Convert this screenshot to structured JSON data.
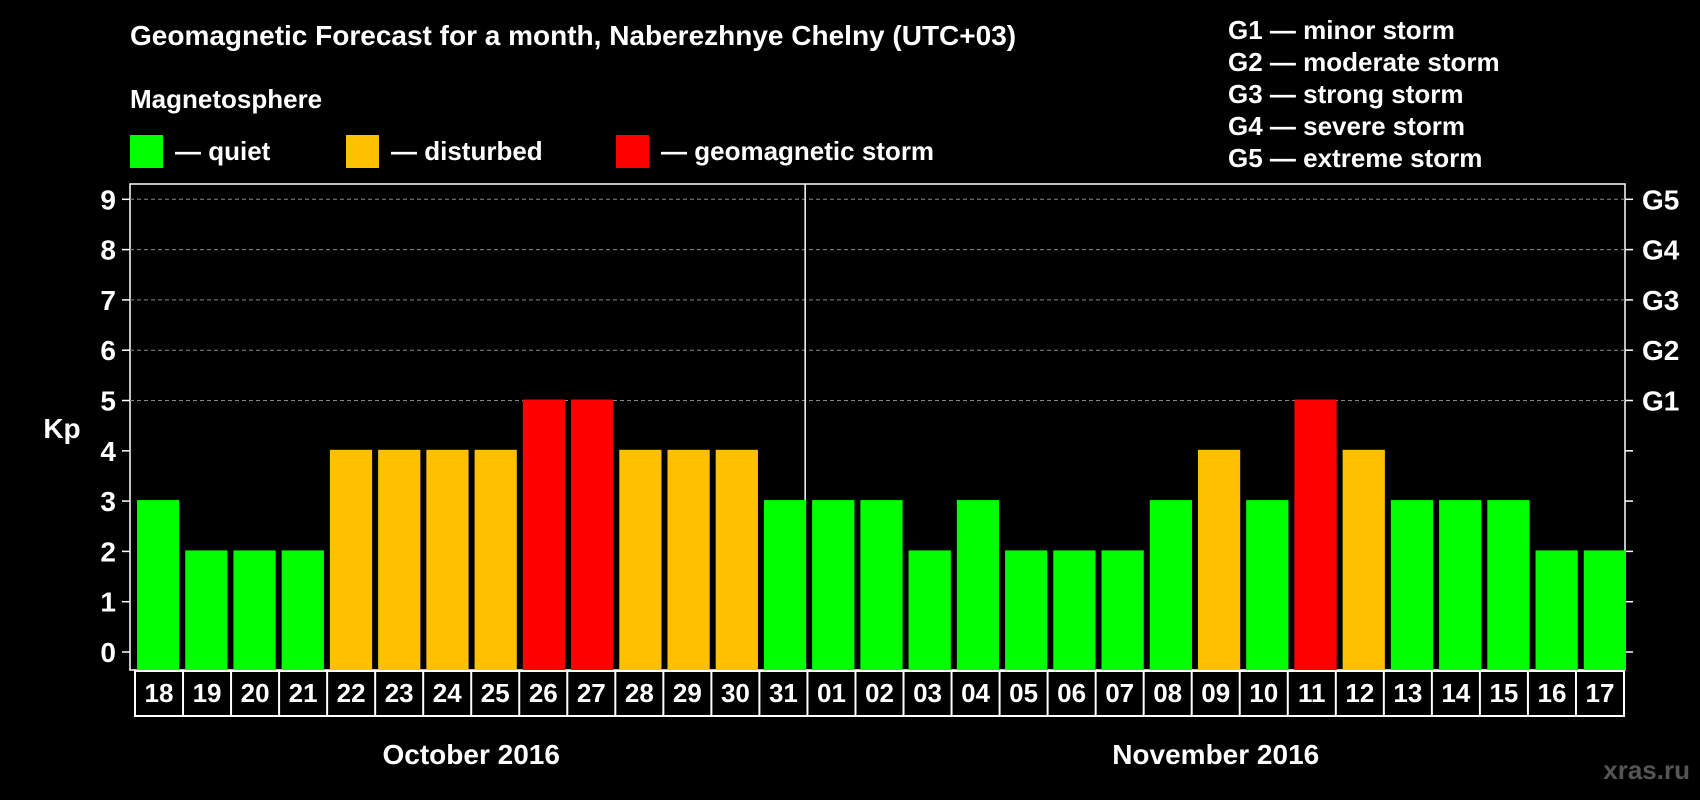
{
  "title": "Geomagnetic Forecast for a month, Naberezhnye Chelny (UTC+03)",
  "subtitle": "Magnetosphere",
  "legend": [
    {
      "label": "— quiet",
      "color": "#00ff00"
    },
    {
      "label": "— disturbed",
      "color": "#ffc000"
    },
    {
      "label": "— geomagnetic storm",
      "color": "#ff0000"
    }
  ],
  "g_legend": [
    "G1 — minor storm",
    "G2 — moderate storm",
    "G3 — strong storm",
    "G4 — severe storm",
    "G5 — extreme storm"
  ],
  "watermark": "xras.ru",
  "chart_data": {
    "type": "bar",
    "title": "Geomagnetic Forecast for a month, Naberezhnye Chelny (UTC+03)",
    "ylabel": "Kp",
    "ylim": [
      0,
      9
    ],
    "yticks": [
      "0",
      "1",
      "2",
      "3",
      "4",
      "5",
      "6",
      "7",
      "8",
      "9"
    ],
    "right_tick_labels": [
      {
        "kp": 5,
        "label": "G1"
      },
      {
        "kp": 6,
        "label": "G2"
      },
      {
        "kp": 7,
        "label": "G3"
      },
      {
        "kp": 8,
        "label": "G4"
      },
      {
        "kp": 9,
        "label": "G5"
      }
    ],
    "categories": [
      "18",
      "19",
      "20",
      "21",
      "22",
      "23",
      "24",
      "25",
      "26",
      "27",
      "28",
      "29",
      "30",
      "31",
      "01",
      "02",
      "03",
      "04",
      "05",
      "06",
      "07",
      "08",
      "09",
      "10",
      "11",
      "12",
      "13",
      "14",
      "15",
      "16",
      "17"
    ],
    "values": [
      3,
      2,
      2,
      2,
      4,
      4,
      4,
      4,
      5,
      5,
      4,
      4,
      4,
      3,
      3,
      3,
      2,
      3,
      2,
      2,
      2,
      3,
      4,
      3,
      5,
      4,
      3,
      3,
      3,
      2,
      2
    ],
    "colors": {
      "quiet": "#00ff00",
      "disturbed": "#ffc000",
      "storm": "#ff0000"
    },
    "months": [
      {
        "label": "October 2016",
        "start": 0,
        "end": 13
      },
      {
        "label": "November 2016",
        "start": 14,
        "end": 30
      }
    ]
  }
}
